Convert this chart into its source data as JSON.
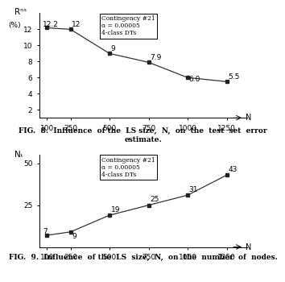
{
  "fig8": {
    "x": [
      100,
      250,
      500,
      750,
      1000,
      1250
    ],
    "y": [
      12.2,
      12.0,
      9.0,
      7.9,
      6.0,
      5.5
    ],
    "labels": [
      "12.2",
      "12",
      "9",
      "7.9",
      "6.0",
      "5.5"
    ],
    "label_offsets_x": [
      -30,
      8,
      8,
      8,
      8,
      8
    ],
    "label_offsets_y": [
      0.1,
      0.3,
      0.3,
      0.3,
      -0.5,
      0.3
    ],
    "ylabel": "Rⁿˢ\n(%)",
    "ylim": [
      1,
      14
    ],
    "yticks": [
      2,
      4,
      6,
      8,
      10,
      12
    ],
    "legend_lines": [
      "Contingency #21",
      "α = 0.00005",
      "4-class DTs"
    ]
  },
  "fig9": {
    "x": [
      100,
      250,
      500,
      750,
      1000,
      1250
    ],
    "y": [
      7,
      9,
      19,
      25,
      31,
      43
    ],
    "labels": [
      "7",
      "9",
      "19",
      "25",
      "31",
      "43"
    ],
    "label_offsets_x": [
      -25,
      8,
      8,
      8,
      8,
      8
    ],
    "label_offsets_y": [
      1,
      -4,
      2,
      2,
      2,
      2
    ],
    "ylabel": "Nₜ",
    "ylim": [
      0,
      55
    ],
    "yticks": [
      25,
      50
    ],
    "legend_lines": [
      "Contingency #21",
      "α = 0.00005",
      "4-class DTs"
    ]
  },
  "xlabel": "N",
  "xlim": [
    50,
    1380
  ],
  "xticks": [
    100,
    250,
    500,
    750,
    1000,
    1250
  ],
  "line_color": "#333333",
  "marker_color": "#222222",
  "caption8": "FIG.  8.  Influence  of the  LS size,  N,  on  the  test  set  error\nestimate.",
  "caption9": "FIG.  9.  Influence  of the  LS  size,  N,  on  the  number  of  nodes."
}
